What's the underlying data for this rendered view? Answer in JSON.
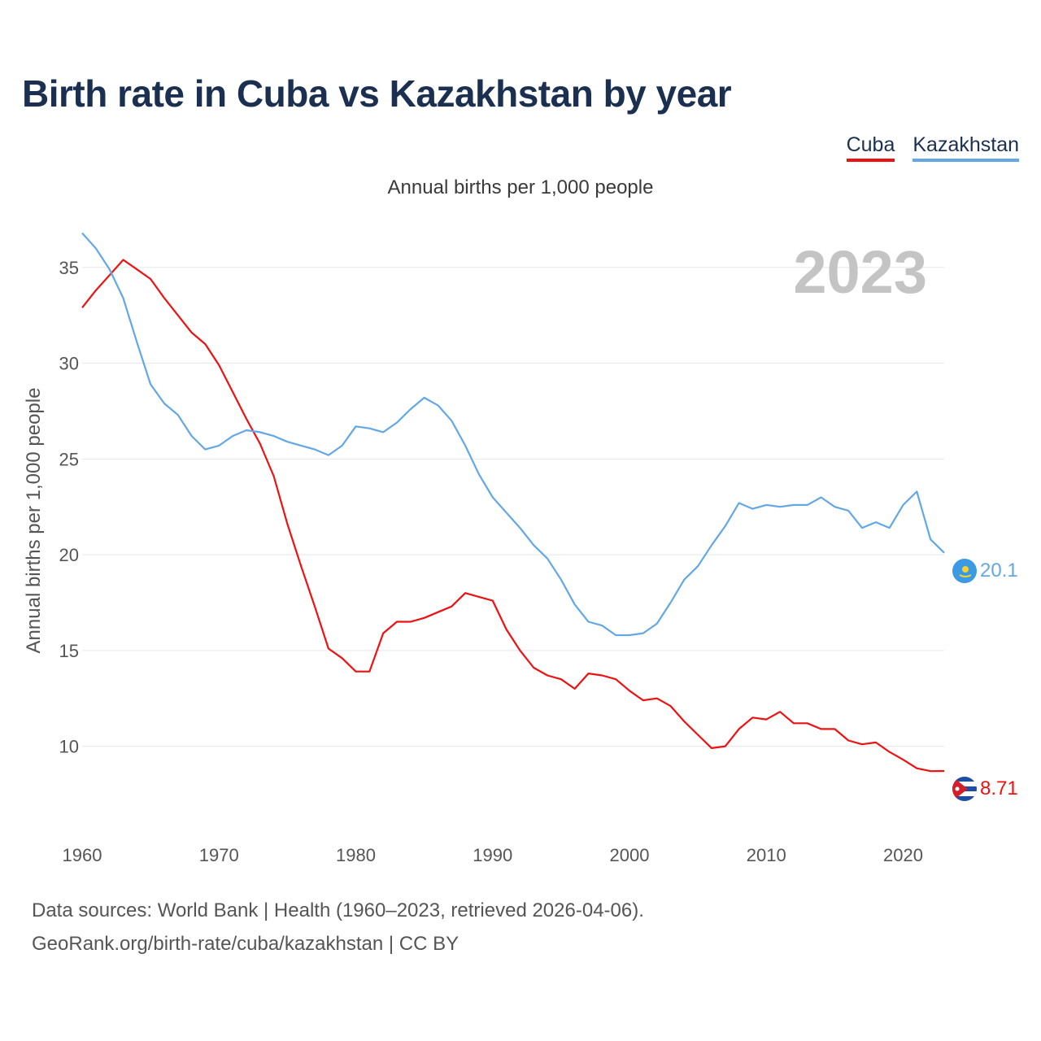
{
  "title": "Birth rate in Cuba vs Kazakhstan by year",
  "subtitle": "Annual births per 1,000 people",
  "legend": {
    "cuba": "Cuba",
    "kazakhstan": "Kazakhstan"
  },
  "sources": {
    "line1": "Data sources: World Bank | Health (1960–2023, retrieved 2026-04-06).",
    "line2": "GeoRank.org/birth-rate/cuba/kazakhstan | CC BY"
  },
  "colors": {
    "cuba": "#ee1111",
    "kazakhstan": "#63a7e6",
    "grid": "#e6e6e6",
    "year": "#c4c4c4"
  },
  "chart_data": {
    "type": "line",
    "title": "Birth rate in Cuba vs Kazakhstan by year",
    "ylabel": "Annual births per 1,000 people",
    "xlabel": "",
    "year_label": "2023",
    "xlim": [
      1960,
      2023
    ],
    "ylim": [
      6.5,
      37.5
    ],
    "x_ticks": [
      1960,
      1970,
      1980,
      1990,
      2000,
      2010,
      2020
    ],
    "y_ticks": [
      10,
      15,
      20,
      25,
      30,
      35
    ],
    "x": [
      1960,
      1961,
      1962,
      1963,
      1964,
      1965,
      1966,
      1967,
      1968,
      1969,
      1970,
      1971,
      1972,
      1973,
      1974,
      1975,
      1976,
      1977,
      1978,
      1979,
      1980,
      1981,
      1982,
      1983,
      1984,
      1985,
      1986,
      1987,
      1988,
      1989,
      1990,
      1991,
      1992,
      1993,
      1994,
      1995,
      1996,
      1997,
      1998,
      1999,
      2000,
      2001,
      2002,
      2003,
      2004,
      2005,
      2006,
      2007,
      2008,
      2009,
      2010,
      2011,
      2012,
      2013,
      2014,
      2015,
      2016,
      2017,
      2018,
      2019,
      2020,
      2021,
      2022,
      2023
    ],
    "series": [
      {
        "name": "Cuba",
        "end_label": "8.71",
        "values": [
          32.9,
          33.8,
          34.6,
          35.4,
          34.9,
          34.4,
          33.4,
          32.5,
          31.6,
          31.0,
          29.9,
          28.5,
          27.1,
          25.8,
          24.1,
          21.6,
          19.4,
          17.3,
          15.1,
          14.6,
          13.9,
          13.9,
          15.9,
          16.5,
          16.5,
          16.7,
          17.0,
          17.3,
          18.0,
          17.8,
          17.6,
          16.1,
          15.0,
          14.1,
          13.7,
          13.5,
          13.0,
          13.8,
          13.7,
          13.5,
          12.9,
          12.4,
          12.5,
          12.1,
          11.3,
          10.6,
          9.9,
          10.0,
          10.9,
          11.5,
          11.4,
          11.8,
          11.2,
          11.2,
          10.9,
          10.9,
          10.3,
          10.1,
          10.2,
          9.7,
          9.3,
          8.85,
          8.7,
          8.71
        ]
      },
      {
        "name": "Kazakhstan",
        "end_label": "20.1",
        "values": [
          36.8,
          36.0,
          34.9,
          33.4,
          31.1,
          28.9,
          27.9,
          27.3,
          26.2,
          25.5,
          25.7,
          26.2,
          26.5,
          26.4,
          26.2,
          25.9,
          25.7,
          25.5,
          25.2,
          25.7,
          26.7,
          26.6,
          26.4,
          26.9,
          27.6,
          28.2,
          27.8,
          27.0,
          25.7,
          24.2,
          23.0,
          22.2,
          21.4,
          20.5,
          19.8,
          18.7,
          17.4,
          16.5,
          16.3,
          15.8,
          15.8,
          15.9,
          16.4,
          17.5,
          18.7,
          19.4,
          20.5,
          21.5,
          22.7,
          22.4,
          22.6,
          22.5,
          22.6,
          22.6,
          23.0,
          22.5,
          22.3,
          21.4,
          21.7,
          21.4,
          22.6,
          23.3,
          20.8,
          20.1
        ]
      }
    ]
  }
}
